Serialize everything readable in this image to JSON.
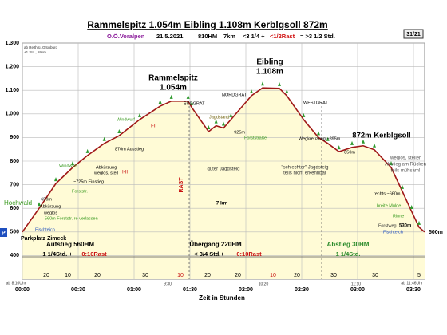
{
  "chart_data": {
    "type": "area",
    "title": "Rammelspitz 1.054m  Eibling 1.108m  Kerblgsoll 872m",
    "subtitle_parts": [
      "O.Ö.Voralpen",
      "21.5.2021",
      "810HM",
      "7km",
      "<3 1/4 +",
      "<1/2Rast",
      "= >3 1/2 Std."
    ],
    "badge": "31/21",
    "x_label": "Zeit in Stunden",
    "x": [
      0,
      9,
      18,
      27,
      35,
      44,
      52,
      63,
      74,
      80,
      89,
      91,
      100,
      104,
      108,
      112,
      123,
      129,
      138,
      142,
      151,
      159,
      164,
      170,
      177,
      183,
      189,
      198,
      204,
      209,
      213,
      216
    ],
    "values": [
      500,
      600,
      705,
      773,
      824,
      875,
      908,
      976,
      1033,
      1054,
      1054,
      1027,
      925,
      950,
      940,
      976,
      1077,
      1110,
      1108,
      1077,
      976,
      900,
      875,
      840,
      858,
      865,
      848,
      773,
      672,
      587,
      520,
      500
    ],
    "color": "#a01818",
    "fill": "#fffbd6",
    "grid": true,
    "xlim": [
      0,
      216
    ],
    "ylim": [
      300,
      1300
    ],
    "xticks": [
      {
        "value": 0,
        "label": "00:00"
      },
      {
        "value": 30,
        "label": "00:30"
      },
      {
        "value": 60,
        "label": "01:00"
      },
      {
        "value": 90,
        "label": "01:30"
      },
      {
        "value": 120,
        "label": "02:00"
      },
      {
        "value": 150,
        "label": "02:30"
      },
      {
        "value": 180,
        "label": "03:00"
      },
      {
        "value": 210,
        "label": "03:30"
      }
    ],
    "yticks": [
      {
        "value": 1300,
        "label": "1.300"
      },
      {
        "value": 1200,
        "label": "1.200"
      },
      {
        "value": 1100,
        "label": "1.100"
      },
      {
        "value": 1000,
        "label": "1.000"
      },
      900,
      800,
      700,
      600,
      500,
      400
    ],
    "annotations": [
      "ab Reith ü. Grünburg",
      "+1 Std., 59km",
      "Rammelspitz",
      "1.054m",
      "Eibling",
      "1.108m",
      "872m Kerblgsoll",
      "SÜDGRAT",
      "NORDGRAT",
      "WESTGRAT",
      "Windwurf",
      "I-II",
      "870m Ausstieg",
      "Abkürzung",
      "weglos, steil",
      "I-II",
      "Windwurf",
      "~725m Einstieg",
      "Forststr.",
      "Hochwald",
      "~650m",
      "Abkürzung",
      "weglos",
      "560m Forststr. re verlassen",
      "Fischteich",
      "Parkplatz Zimeck",
      "Jagdstand",
      "~925m",
      "Forststraße",
      "Wegkreuzung ~895m",
      "~850m",
      "weglos, steiler",
      "Abstieg am Rücken",
      "teils mühsam!",
      "guter Jagdsteig",
      "\"schlechter\" Jagdsteig",
      "teils nicht erkennbar",
      "7 km",
      "rechts ~660m",
      "breite Mulde",
      "Rinne",
      "Forstweg",
      "530m",
      "Fischteich",
      "500m",
      "P",
      "RAST",
      "Aufstieg 560HM",
      "1 1/4Std. +",
      "0:10Rast",
      "Übergang 220HM",
      "< 3/4 Std.+",
      "0:10Rast",
      "Abstieg 30HM",
      "1 1/4Std.",
      "20",
      "10",
      "20",
      "30",
      "10",
      "20",
      "20",
      "10",
      "20",
      "30",
      "30",
      "5",
      "9:30",
      "10:20",
      "11:10",
      "ab 8:10Uhr",
      "ab 11:46Uhr"
    ]
  }
}
